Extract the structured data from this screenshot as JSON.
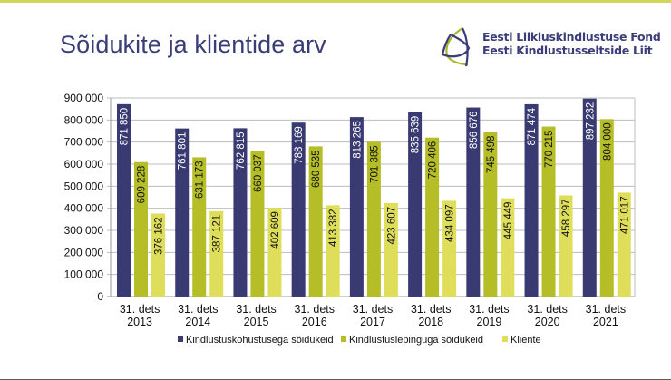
{
  "slide": {
    "title": "Sõidukite ja klientide arv",
    "logo": {
      "icon": "triangular-swirl-logo-icon",
      "line1": "Eesti Liikluskindlustuse Fond",
      "line2": "Eesti Kindlustusseltside Liit",
      "colors": {
        "navy": "#3a3d78",
        "green": "#a5b82a"
      }
    },
    "accent_color": "#d4d65a"
  },
  "chart_data": {
    "type": "bar",
    "title": "",
    "xlabel": "",
    "ylabel": "",
    "ylim": [
      0,
      900000
    ],
    "yticks": [
      0,
      100000,
      200000,
      300000,
      400000,
      500000,
      600000,
      700000,
      800000,
      900000
    ],
    "ytick_labels": [
      "0",
      "100 000",
      "200 000",
      "300 000",
      "400 000",
      "500 000",
      "600 000",
      "700 000",
      "800 000",
      "900 000"
    ],
    "grid": true,
    "legend_position": "bottom",
    "categories": [
      [
        "31. dets",
        "2013"
      ],
      [
        "31. dets",
        "2014"
      ],
      [
        "31. dets",
        "2015"
      ],
      [
        "31. dets",
        "2016"
      ],
      [
        "31. dets",
        "2017"
      ],
      [
        "31. dets",
        "2018"
      ],
      [
        "31. dets",
        "2019"
      ],
      [
        "31. dets",
        "2020"
      ],
      [
        "31. dets",
        "2021"
      ]
    ],
    "series": [
      {
        "name": "Kindlustuskohustusega sõidukeid",
        "color": "#3a3a72",
        "label_color": "#ffffff",
        "values": [
          871850,
          761801,
          762815,
          788169,
          813265,
          835639,
          856676,
          871474,
          897232
        ],
        "labels": [
          "871 850",
          "761 801",
          "762 815",
          "788 169",
          "813 265",
          "835 639",
          "856 676",
          "871 474",
          "897 232"
        ]
      },
      {
        "name": "Kindlustuslepinguga sõidukeid",
        "color": "#b5bd27",
        "label_color": "#111111",
        "values": [
          609228,
          631173,
          660037,
          680535,
          701385,
          720406,
          745498,
          770215,
          804000
        ],
        "labels": [
          "609 228",
          "631 173",
          "660 037",
          "680 535",
          "701 385",
          "720 406",
          "745 498",
          "770 215",
          "804 000"
        ]
      },
      {
        "name": "Kliente",
        "color": "#dede5a",
        "label_color": "#111111",
        "values": [
          376162,
          387121,
          402609,
          413382,
          423607,
          434097,
          445449,
          458297,
          471017
        ],
        "labels": [
          "376 162",
          "387 121",
          "402 609",
          "413 382",
          "423 607",
          "434 097",
          "445 449",
          "458 297",
          "471 017"
        ]
      }
    ]
  }
}
